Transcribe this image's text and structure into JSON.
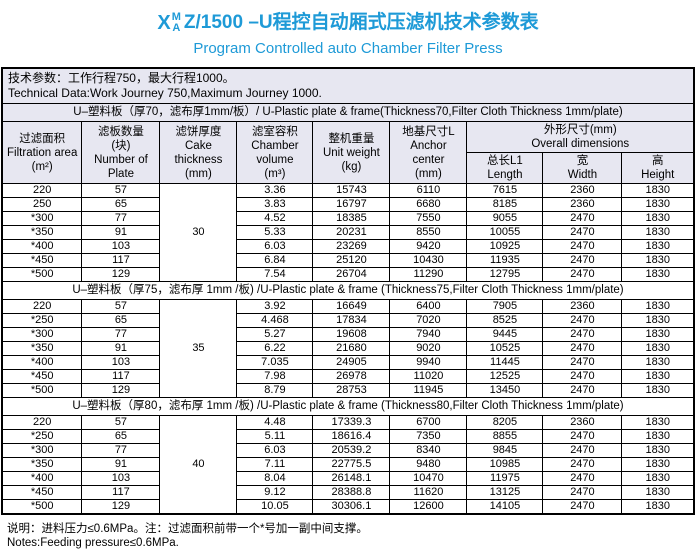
{
  "accent_color": "#1e9ad7",
  "header_bg": "#e7e7f1",
  "title": {
    "x": "X",
    "sup": "M",
    "sub": "A",
    "rest": "Z/1500 –U程控自动厢式压滤机技术参数表",
    "subtitle": "Program Controlled auto Chamber Filter Press"
  },
  "tech": {
    "line1": "技术参数：工作行程750，最大行程1000。",
    "line2": "Technical Data:Work Journey 750,Maximum Journey 1000."
  },
  "table": {
    "columns": [
      {
        "name": "filtration-area",
        "lines": [
          "过滤面积",
          "Filtration area",
          "(m²)"
        ]
      },
      {
        "name": "number-of-plate",
        "lines": [
          "滤板数量",
          "(块)",
          "Number of",
          "Plate"
        ]
      },
      {
        "name": "cake-thickness",
        "lines": [
          "滤饼厚度",
          "Cake",
          "thickness",
          "(mm)"
        ]
      },
      {
        "name": "chamber-volume",
        "lines": [
          "滤室容积",
          "Chamber",
          "volume",
          "(m³)"
        ]
      },
      {
        "name": "unit-weight",
        "lines": [
          "整机重量",
          "Unit weight",
          "(kg)"
        ]
      },
      {
        "name": "anchor-center",
        "lines": [
          "地基尺寸L",
          "Anchor",
          "center",
          "(mm)"
        ]
      }
    ],
    "overall_group": {
      "zh": "外形尺寸(mm)",
      "en": "Overall dimensions"
    },
    "overall_columns": [
      {
        "name": "length",
        "lines": [
          "总长L1",
          "Length"
        ]
      },
      {
        "name": "width",
        "lines": [
          "宽",
          "Width"
        ]
      },
      {
        "name": "height",
        "lines": [
          "高",
          "Height"
        ]
      }
    ],
    "sections": [
      {
        "header": "U–塑料板（厚70，滤布厚1mm/板）/ U-Plastic plate & frame(Thickness70,Filter Cloth Thickness 1mm/plate)",
        "cake_thickness": "30",
        "rows": [
          [
            "220",
            "57",
            "3.36",
            "15743",
            "6110",
            "7615",
            "2360",
            "1830"
          ],
          [
            "250",
            "65",
            "3.83",
            "16797",
            "6680",
            "8185",
            "2360",
            "1830"
          ],
          [
            "*300",
            "77",
            "4.52",
            "18385",
            "7550",
            "9055",
            "2470",
            "1830"
          ],
          [
            "*350",
            "91",
            "5.33",
            "20231",
            "8550",
            "10055",
            "2470",
            "1830"
          ],
          [
            "*400",
            "103",
            "6.03",
            "23269",
            "9420",
            "10925",
            "2470",
            "1830"
          ],
          [
            "*450",
            "117",
            "6.84",
            "25120",
            "10430",
            "11935",
            "2470",
            "1830"
          ],
          [
            "*500",
            "129",
            "7.54",
            "26704",
            "11290",
            "12795",
            "2470",
            "1830"
          ]
        ]
      },
      {
        "header": "U–塑料板（厚75，滤布厚 1mm /板) /U-Plastic plate & frame (Thickness75,Filter Cloth Thickness 1mm/plate)",
        "cake_thickness": "35",
        "rows": [
          [
            "220",
            "57",
            "3.92",
            "16649",
            "6400",
            "7905",
            "2360",
            "1830"
          ],
          [
            "*250",
            "65",
            "4.468",
            "17834",
            "7020",
            "8525",
            "2470",
            "1830"
          ],
          [
            "*300",
            "77",
            "5.27",
            "19608",
            "7940",
            "9445",
            "2470",
            "1830"
          ],
          [
            "*350",
            "91",
            "6.22",
            "21680",
            "9020",
            "10525",
            "2470",
            "1830"
          ],
          [
            "*400",
            "103",
            "7.035",
            "24905",
            "9940",
            "11445",
            "2470",
            "1830"
          ],
          [
            "*450",
            "117",
            "7.98",
            "26978",
            "11020",
            "12525",
            "2470",
            "1830"
          ],
          [
            "*500",
            "129",
            "8.79",
            "28753",
            "11945",
            "13450",
            "2470",
            "1830"
          ]
        ]
      },
      {
        "header": "U–塑料板（厚80，滤布厚 1mm /板) /U-Plastic plate & frame (Thickness80,Filter Cloth Thickness 1mm/plate)",
        "cake_thickness": "40",
        "rows": [
          [
            "220",
            "57",
            "4.48",
            "17339.3",
            "6700",
            "8205",
            "2360",
            "1830"
          ],
          [
            "*250",
            "65",
            "5.11",
            "18616.4",
            "7350",
            "8855",
            "2470",
            "1830"
          ],
          [
            "*300",
            "77",
            "6.03",
            "20539.2",
            "8340",
            "9845",
            "2470",
            "1830"
          ],
          [
            "*350",
            "91",
            "7.11",
            "22775.5",
            "9480",
            "10985",
            "2470",
            "1830"
          ],
          [
            "*400",
            "103",
            "8.04",
            "26148.1",
            "10470",
            "11975",
            "2470",
            "1830"
          ],
          [
            "*450",
            "117",
            "9.12",
            "28388.8",
            "11620",
            "13125",
            "2470",
            "1830"
          ],
          [
            "*500",
            "129",
            "10.05",
            "30306.1",
            "12600",
            "14105",
            "2470",
            "1830"
          ]
        ]
      }
    ]
  },
  "notes": {
    "line1": "说明：进料压力≤0.6MPa。注：过滤面积前带一个*号加一副中间支撑。",
    "line2": "Notes:Feeding pressure≤0.6MPa."
  }
}
